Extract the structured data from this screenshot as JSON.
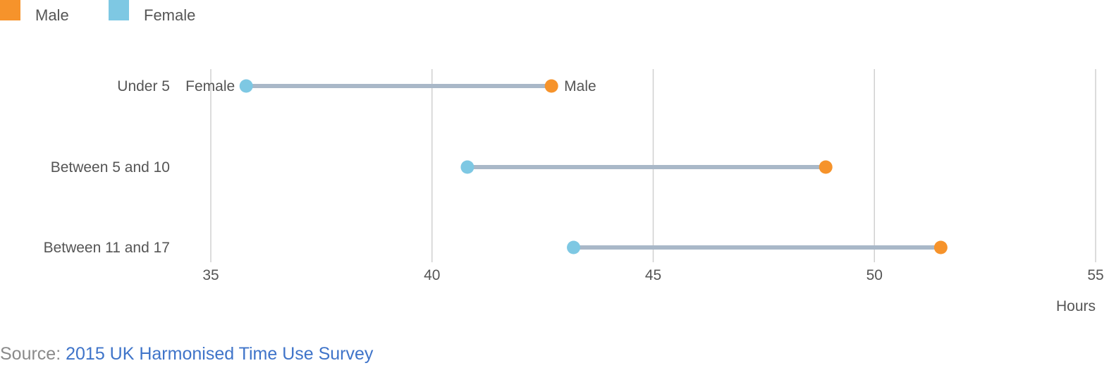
{
  "chart_data": {
    "type": "dumbbell",
    "legend": {
      "position": "top-left",
      "items": [
        {
          "label": "Male",
          "color": "#f6932b"
        },
        {
          "label": "Female",
          "color": "#7ec8e3"
        }
      ]
    },
    "categories": [
      "Under 5",
      "Between 5 and 10",
      "Between 11 and 17"
    ],
    "series": [
      {
        "name": "Female",
        "color": "#7ec8e3",
        "values": [
          35.8,
          40.8,
          43.2
        ]
      },
      {
        "name": "Male",
        "color": "#f6932b",
        "values": [
          42.7,
          48.9,
          51.5
        ]
      }
    ],
    "connector_color": "#a9b8c8",
    "point_labels": {
      "category_index": 0,
      "left": "Female",
      "right": "Male"
    },
    "xlabel": "Hours",
    "xlim": [
      35,
      55
    ],
    "xticks": [
      "35",
      "40",
      "45",
      "50",
      "55"
    ],
    "grid": true
  },
  "source": {
    "prefix": "Source: ",
    "link_text": "2015 UK Harmonised Time Use Survey"
  }
}
